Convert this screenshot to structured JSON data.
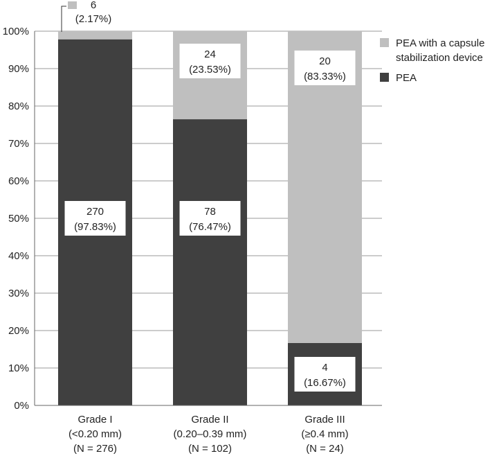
{
  "chart_data": {
    "type": "bar",
    "stacked": true,
    "categories": [
      [
        "Grade I",
        "(<0.20 mm)",
        "(N = 276)"
      ],
      [
        "Grade II",
        "(0.20–0.39 mm)",
        "(N = 102)"
      ],
      [
        "Grade III",
        "(≥0.4 mm)",
        "(N = 24)"
      ]
    ],
    "yticks": [
      "0%",
      "10%",
      "20%",
      "30%",
      "40%",
      "50%",
      "60%",
      "70%",
      "80%",
      "90%",
      "100%"
    ],
    "ylim": [
      0,
      100
    ],
    "grid": true,
    "legend_position": "top-right",
    "colors": {
      "PEA": "#404040",
      "PEA with a capsule stabilization device": "#bfbfbf",
      "grid": "#999999",
      "axis": "#666666"
    },
    "series": [
      {
        "name": "PEA",
        "values": [
          97.83,
          76.47,
          16.67
        ],
        "labels": [
          [
            "270",
            "(97.83%)"
          ],
          [
            "78",
            "(76.47%)"
          ],
          [
            "4",
            "(16.67%)"
          ]
        ]
      },
      {
        "name": "PEA with a capsule stabilization device",
        "values": [
          2.17,
          23.53,
          83.33
        ],
        "labels": [
          [
            "6",
            "(2.17%)"
          ],
          [
            "24",
            "(23.53%)"
          ],
          [
            "20",
            "(83.33%)"
          ]
        ]
      }
    ],
    "legend": [
      [
        "PEA with a capsule",
        "stabilization device"
      ],
      [
        "PEA"
      ]
    ]
  }
}
